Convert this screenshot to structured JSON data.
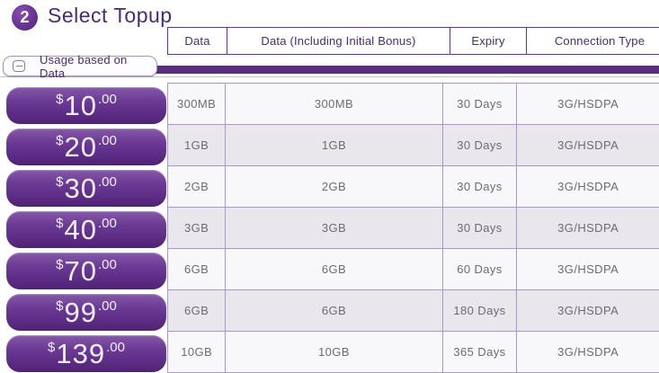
{
  "header": {
    "step_number": "2",
    "title": "Select Topup"
  },
  "panel": {
    "tab_label": "Usage based on Data"
  },
  "table": {
    "columns": [
      "Data",
      "Data (Including Initial Bonus)",
      "Expiry",
      "Connection Type"
    ],
    "rows": [
      {
        "currency": "$",
        "price": "10",
        "cents": ".00",
        "data": "300MB",
        "data_bonus": "300MB",
        "expiry": "30 Days",
        "connection": "3G/HSDPA"
      },
      {
        "currency": "$",
        "price": "20",
        "cents": ".00",
        "data": "1GB",
        "data_bonus": "1GB",
        "expiry": "30 Days",
        "connection": "3G/HSDPA"
      },
      {
        "currency": "$",
        "price": "30",
        "cents": ".00",
        "data": "2GB",
        "data_bonus": "2GB",
        "expiry": "30 Days",
        "connection": "3G/HSDPA"
      },
      {
        "currency": "$",
        "price": "40",
        "cents": ".00",
        "data": "3GB",
        "data_bonus": "3GB",
        "expiry": "30 Days",
        "connection": "3G/HSDPA"
      },
      {
        "currency": "$",
        "price": "70",
        "cents": ".00",
        "data": "6GB",
        "data_bonus": "6GB",
        "expiry": "60 Days",
        "connection": "3G/HSDPA"
      },
      {
        "currency": "$",
        "price": "99",
        "cents": ".00",
        "data": "6GB",
        "data_bonus": "6GB",
        "expiry": "180 Days",
        "connection": "3G/HSDPA"
      },
      {
        "currency": "$",
        "price": "139",
        "cents": ".00",
        "data": "10GB",
        "data_bonus": "10GB",
        "expiry": "365 Days",
        "connection": "3G/HSDPA"
      }
    ]
  },
  "colors": {
    "title": "#4b2a71",
    "circle_light": "#8a4caf",
    "circle_dark": "#5d2b88",
    "header_border": "#5e3a80",
    "header_text": "#4a2a6e",
    "bar": "#5b2c80",
    "row_border": "#a89cbe",
    "row_odd": "#f8f7f9",
    "row_even": "#e9e7ec",
    "cell_text": "#6e6a74",
    "button_top": "#8659a8",
    "button_mid": "#6b3a95",
    "button_low": "#5d2d85",
    "button_bottom": "#4f2274",
    "button_text": "#f3eef8"
  }
}
